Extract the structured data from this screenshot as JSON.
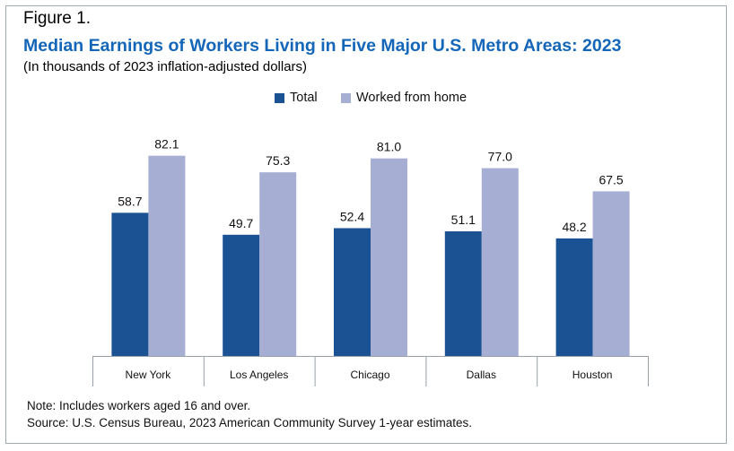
{
  "figure_label": "Figure 1.",
  "title": "Median Earnings of Workers Living in Five Major U.S. Metro Areas: 2023",
  "subtitle": "(In thousands of 2023 inflation-adjusted dollars)",
  "note": "Note: Includes workers aged 16 and over.",
  "source": "Source: U.S. Census Bureau, 2023 American Community Survey 1-year estimates.",
  "colors": {
    "total": "#1b5294",
    "wfh": "#a7aed4",
    "title": "#1466b8",
    "axis": "#9aa0a8"
  },
  "chart_data": {
    "type": "bar",
    "title": "Median Earnings of Workers Living in Five Major U.S. Metro Areas: 2023",
    "subtitle": "(In thousands of 2023 inflation-adjusted dollars)",
    "categories": [
      "New York",
      "Los Angeles",
      "Chicago",
      "Dallas",
      "Houston"
    ],
    "series": [
      {
        "name": "Total",
        "values": [
          58.7,
          49.7,
          52.4,
          51.1,
          48.2
        ],
        "labels": [
          "58.7",
          "49.7",
          "52.4",
          "51.1",
          "48.2"
        ],
        "color": "#1b5294"
      },
      {
        "name": "Worked from home",
        "values": [
          82.1,
          75.3,
          81.0,
          77.0,
          67.5
        ],
        "labels": [
          "82.1",
          "75.3",
          "81.0",
          "77.0",
          "67.5"
        ],
        "color": "#a7aed4"
      }
    ],
    "ylim": [
      0,
      100
    ],
    "grid": false,
    "legend": "top-center",
    "xlabel": "",
    "ylabel": ""
  }
}
